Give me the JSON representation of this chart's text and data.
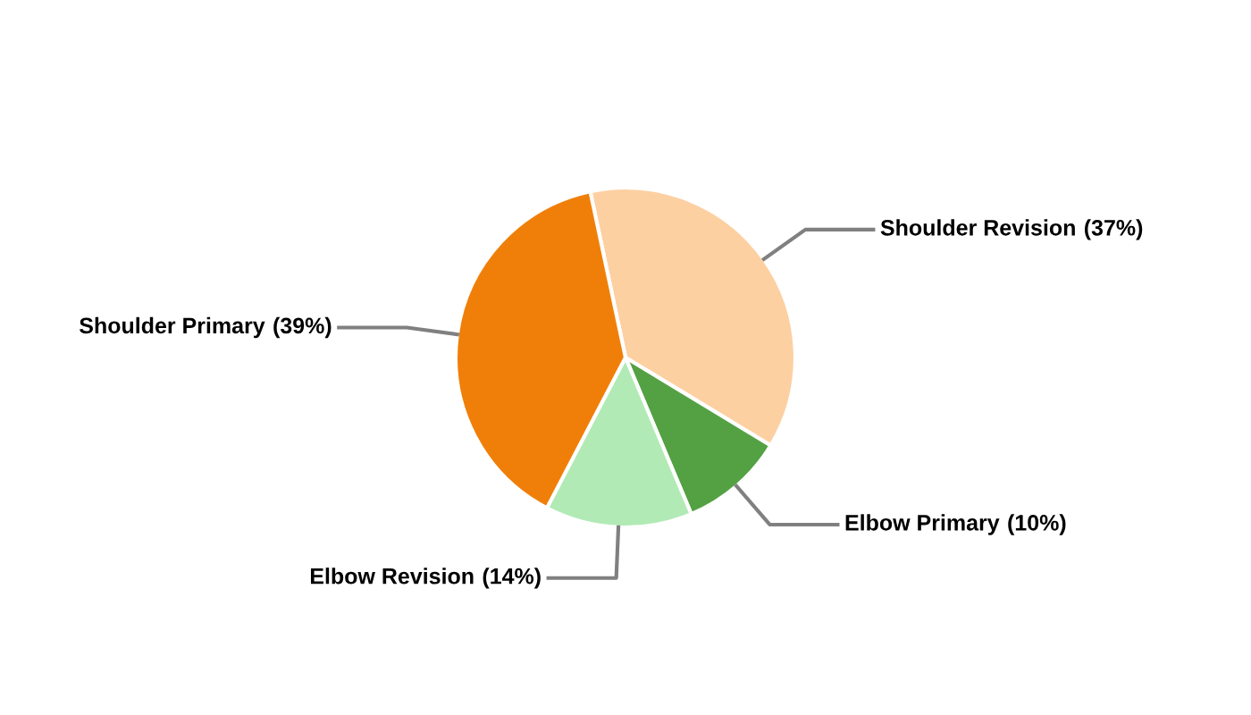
{
  "chart_data": {
    "type": "pie",
    "categories": [
      "Shoulder Revision",
      "Elbow Primary",
      "Elbow Revision",
      "Shoulder Primary"
    ],
    "values": [
      37,
      10,
      14,
      39
    ],
    "colors": [
      "#fdd0a2",
      "#54a144",
      "#b1eab5",
      "#f07f09"
    ],
    "value_labels": [
      "(37%)",
      "(10%)",
      "(14%)",
      "(39%)"
    ],
    "legend": false
  }
}
